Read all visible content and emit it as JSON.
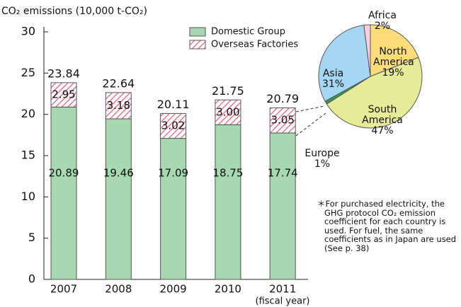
{
  "chart_data": [
    {
      "type": "stacked_bar",
      "y_label": "CO₂ emissions (10,000 t-CO₂)",
      "x_label": "(fiscal year)",
      "categories": [
        "2007",
        "2008",
        "2009",
        "2010",
        "2011"
      ],
      "series": [
        {
          "name": "Domestic Group",
          "color": "#a8d8b0",
          "values": [
            20.89,
            19.46,
            17.09,
            18.75,
            17.74
          ]
        },
        {
          "name": "Overseas Factories",
          "color": "#e0607e",
          "values": [
            2.95,
            3.18,
            3.02,
            3.0,
            3.05
          ],
          "value_labels": [
            "2.95",
            "3.18",
            "3.02",
            "3.00",
            "3.05"
          ]
        }
      ],
      "totals": [
        23.84,
        22.64,
        20.11,
        21.75,
        20.79
      ],
      "ylim": [
        0,
        30
      ],
      "yticks": [
        0,
        5,
        10,
        15,
        20,
        25,
        30
      ],
      "grid": false,
      "legend": "top"
    },
    {
      "type": "pie",
      "categories": [
        "North America",
        "South America",
        "Europe",
        "Asia",
        "Africa"
      ],
      "values": [
        19,
        47,
        1,
        31,
        2
      ],
      "value_labels": [
        "19%",
        "47%",
        "1%",
        "31%",
        "2%"
      ],
      "colors": [
        "#fddc7a",
        "#e6eb98",
        "#2e9a5a",
        "#a5d6f2",
        "#f7cfe0"
      ]
    }
  ],
  "note": "＊For purchased electricity, the GHG protocol CO₂ emission coefficient for each country is used. For fuel, the same coefficients as in Japan are used (See p. 38)"
}
